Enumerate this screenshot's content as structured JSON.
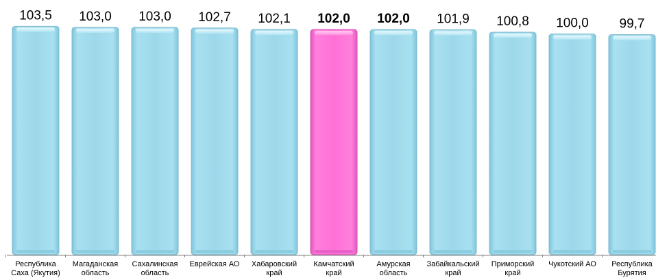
{
  "chart_data": {
    "type": "bar",
    "title": "",
    "xlabel": "",
    "ylabel": "",
    "ylim": [
      0,
      103.6
    ],
    "grid": false,
    "legend": "none",
    "categories": [
      [
        "Республика",
        "Саха (Якутия)"
      ],
      [
        "Магаданская",
        "область"
      ],
      [
        "Сахалинская",
        "область"
      ],
      [
        "Еврейская АО"
      ],
      [
        "Хабаровский",
        "край"
      ],
      [
        "Камчатский",
        "край"
      ],
      [
        "Амурская",
        "область"
      ],
      [
        "Забайкальский",
        "край"
      ],
      [
        "Приморский",
        "край"
      ],
      [
        "Чукотский АО"
      ],
      [
        "Республика",
        "Бурятия"
      ]
    ],
    "values": [
      103.5,
      103.0,
      103.0,
      102.7,
      102.1,
      102.0,
      102.0,
      101.9,
      100.8,
      100.0,
      99.7
    ],
    "value_labels": [
      "103,5",
      "103,0",
      "103,0",
      "102,7",
      "102,1",
      "102,0",
      "102,0",
      "101,9",
      "100,8",
      "100,0",
      "99,7"
    ],
    "bold_labels": [
      false,
      false,
      false,
      false,
      false,
      true,
      true,
      false,
      false,
      false,
      false
    ],
    "highlight": [
      false,
      false,
      false,
      false,
      false,
      true,
      false,
      false,
      false,
      false,
      false
    ],
    "colors": {
      "bar": "#9dd8ea",
      "bar_edge": "#7cb8cc",
      "highlight": "#ff70d6",
      "highlight_edge": "#d050b0",
      "axis": "#808080"
    }
  }
}
